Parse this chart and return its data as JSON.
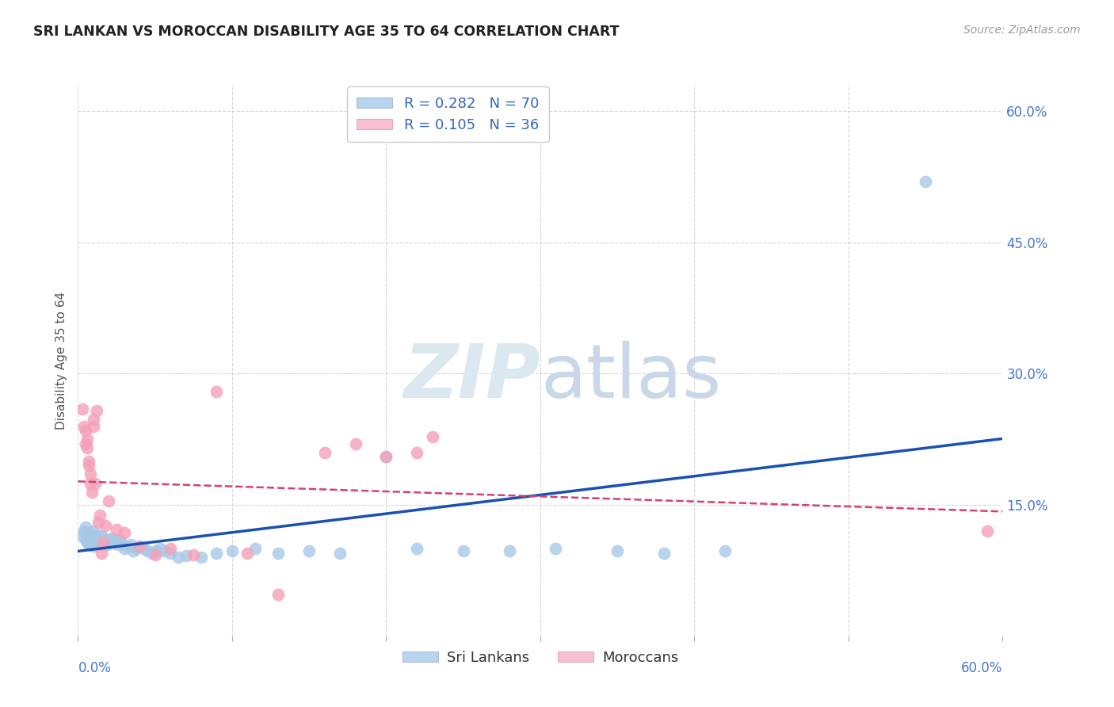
{
  "title": "SRI LANKAN VS MOROCCAN DISABILITY AGE 35 TO 64 CORRELATION CHART",
  "source": "Source: ZipAtlas.com",
  "ylabel": "Disability Age 35 to 64",
  "x_range": [
    0.0,
    0.6
  ],
  "y_range": [
    0.0,
    0.63
  ],
  "sri_lankan_color": "#a8c8e8",
  "moroccan_color": "#f4a0b8",
  "sri_lankan_line_color": "#1a50b0",
  "moroccan_line_color": "#d44070",
  "background_color": "#ffffff",
  "grid_color": "#cccccc",
  "watermark_color": "#dce8f0",
  "sri_x": [
    0.003,
    0.004,
    0.005,
    0.005,
    0.006,
    0.006,
    0.007,
    0.007,
    0.008,
    0.008,
    0.009,
    0.009,
    0.01,
    0.01,
    0.01,
    0.01,
    0.011,
    0.011,
    0.012,
    0.012,
    0.013,
    0.013,
    0.014,
    0.014,
    0.015,
    0.015,
    0.016,
    0.016,
    0.017,
    0.018,
    0.019,
    0.02,
    0.021,
    0.022,
    0.023,
    0.025,
    0.026,
    0.027,
    0.028,
    0.03,
    0.032,
    0.034,
    0.036,
    0.038,
    0.04,
    0.043,
    0.045,
    0.048,
    0.05,
    0.053,
    0.056,
    0.06,
    0.065,
    0.07,
    0.08,
    0.09,
    0.1,
    0.115,
    0.13,
    0.15,
    0.17,
    0.2,
    0.22,
    0.25,
    0.28,
    0.31,
    0.35,
    0.38,
    0.42,
    0.55
  ],
  "sri_y": [
    0.115,
    0.12,
    0.11,
    0.125,
    0.112,
    0.108,
    0.118,
    0.105,
    0.115,
    0.11,
    0.108,
    0.112,
    0.12,
    0.115,
    0.108,
    0.103,
    0.112,
    0.116,
    0.11,
    0.107,
    0.115,
    0.108,
    0.112,
    0.105,
    0.11,
    0.115,
    0.107,
    0.112,
    0.108,
    0.11,
    0.105,
    0.108,
    0.11,
    0.112,
    0.107,
    0.11,
    0.105,
    0.11,
    0.107,
    0.1,
    0.103,
    0.105,
    0.098,
    0.1,
    0.102,
    0.1,
    0.098,
    0.095,
    0.098,
    0.1,
    0.098,
    0.095,
    0.09,
    0.092,
    0.09,
    0.095,
    0.098,
    0.1,
    0.095,
    0.098,
    0.095,
    0.205,
    0.1,
    0.098,
    0.098,
    0.1,
    0.098,
    0.095,
    0.098,
    0.52
  ],
  "mor_x": [
    0.003,
    0.004,
    0.005,
    0.005,
    0.006,
    0.006,
    0.007,
    0.007,
    0.008,
    0.008,
    0.009,
    0.01,
    0.01,
    0.011,
    0.012,
    0.013,
    0.014,
    0.015,
    0.016,
    0.018,
    0.02,
    0.025,
    0.03,
    0.04,
    0.05,
    0.06,
    0.075,
    0.09,
    0.11,
    0.13,
    0.16,
    0.18,
    0.2,
    0.22,
    0.23,
    0.59
  ],
  "mor_y": [
    0.26,
    0.24,
    0.22,
    0.235,
    0.225,
    0.215,
    0.195,
    0.2,
    0.185,
    0.175,
    0.165,
    0.24,
    0.248,
    0.175,
    0.258,
    0.13,
    0.138,
    0.095,
    0.108,
    0.127,
    0.155,
    0.122,
    0.118,
    0.103,
    0.093,
    0.1,
    0.093,
    0.28,
    0.095,
    0.048,
    0.21,
    0.22,
    0.205,
    0.21,
    0.228,
    0.12
  ]
}
